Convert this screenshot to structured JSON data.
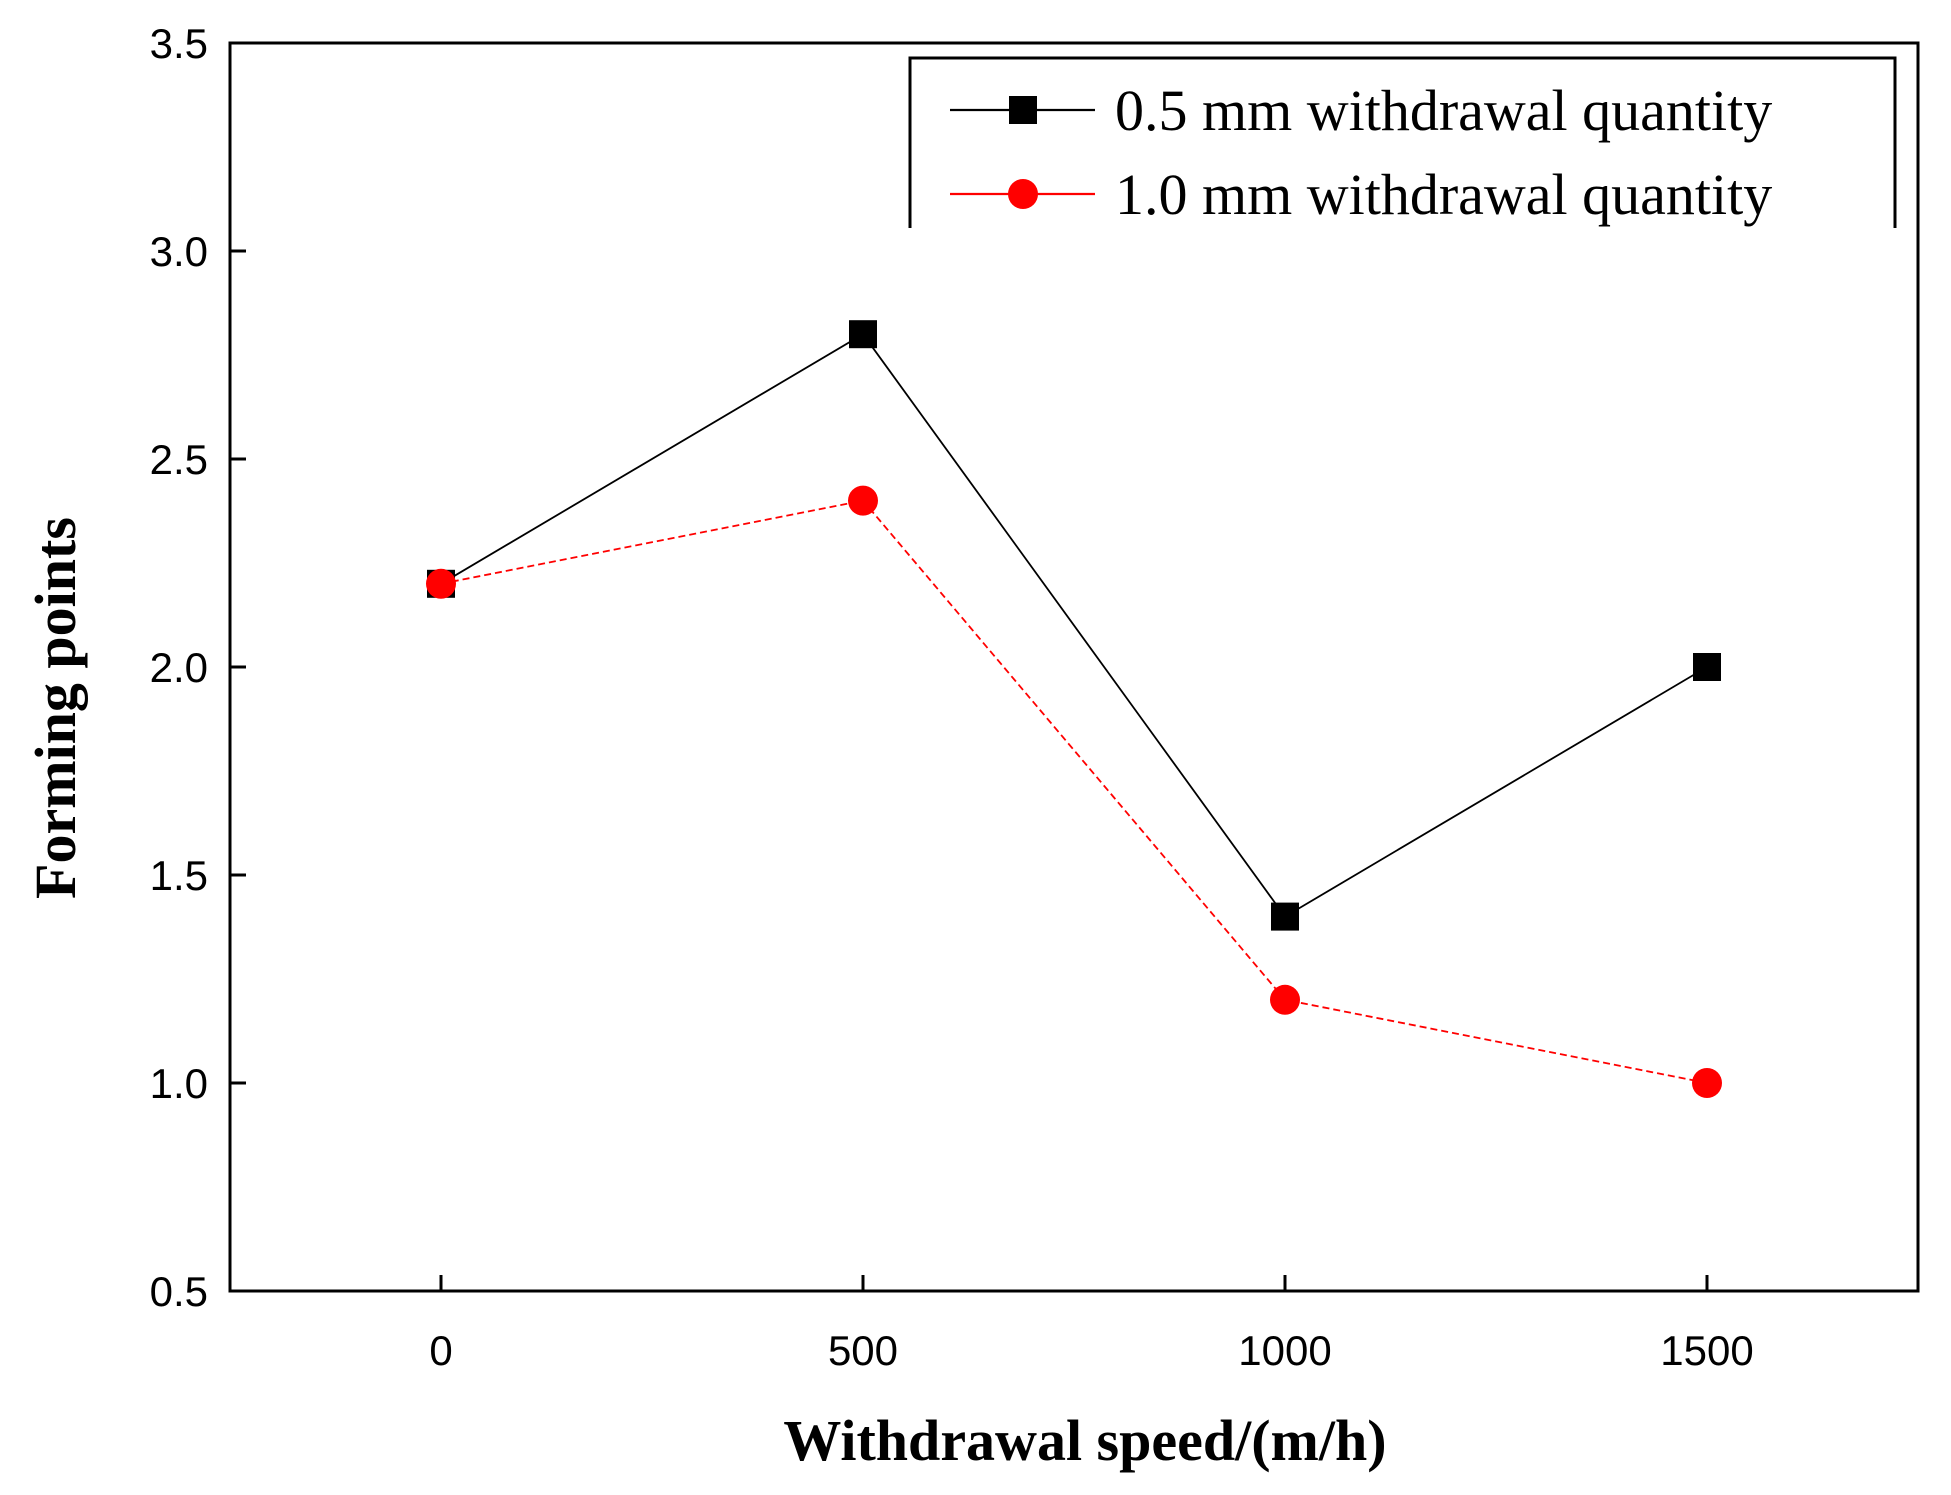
{
  "chart_data": {
    "type": "line",
    "title": "",
    "xlabel": "Withdrawal speed/(m/h)",
    "ylabel": "Forming points",
    "x": [
      0,
      500,
      1000,
      1500
    ],
    "x_tick_labels": [
      "0",
      "500",
      "1000",
      "1500"
    ],
    "y_tick_labels": [
      "0.5",
      "1.0",
      "1.5",
      "2.0",
      "2.5",
      "3.0",
      "3.5"
    ],
    "y_ticks": [
      0.5,
      1.0,
      1.5,
      2.0,
      2.5,
      3.0,
      3.5
    ],
    "xlim": [
      -250,
      1750
    ],
    "ylim": [
      0.5,
      3.5
    ],
    "grid": false,
    "legend_position": "top-right",
    "series": [
      {
        "name": "0.5 mm withdrawal quantity",
        "color": "#000000",
        "marker": "square",
        "line_style": "solid",
        "values": [
          2.2,
          2.8,
          1.4,
          2.0
        ]
      },
      {
        "name": "1.0 mm withdrawal quantity",
        "color": "#ff0000",
        "marker": "circle",
        "line_style": "dashed",
        "values": [
          2.2,
          2.4,
          1.2,
          1.0
        ]
      }
    ]
  }
}
